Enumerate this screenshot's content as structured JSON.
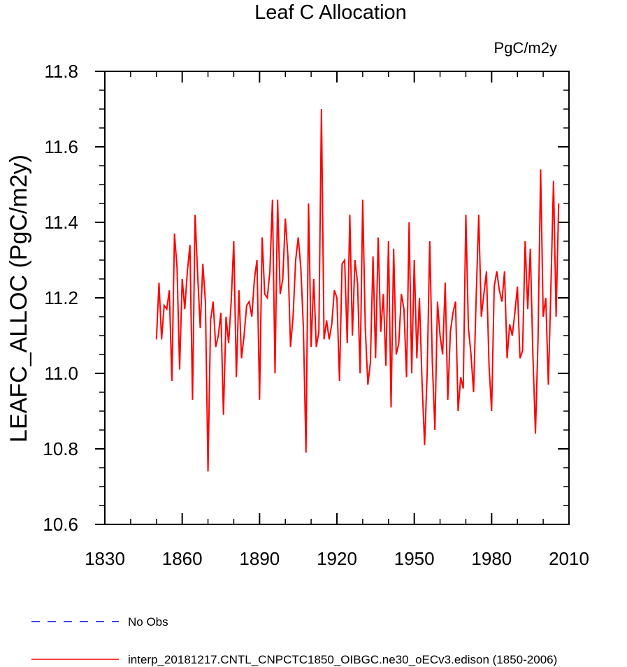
{
  "chart_data": {
    "type": "line",
    "title": "Leaf C Allocation",
    "units_label": "PgC/m2y",
    "xlabel": "",
    "ylabel": "LEAFC_ALLOC  (PgC/m2y)",
    "xlim": [
      1830,
      2010
    ],
    "ylim": [
      10.6,
      11.8
    ],
    "x_ticks": [
      "1830",
      "1860",
      "1890",
      "1920",
      "1950",
      "1980",
      "2010"
    ],
    "y_ticks": [
      "10.6",
      "10.8",
      "11.0",
      "11.2",
      "11.4",
      "11.6",
      "11.8"
    ],
    "x_minor_step": 10,
    "y_minor_step": 0.05,
    "legend": [
      {
        "label": "No Obs",
        "color": "#0000ff",
        "style": "dashed"
      },
      {
        "label": "interp_20181217.CNTL_CNPCTC1850_OIBGC.ne30_oECv3.edison (1850-2006)",
        "color": "#ff0000",
        "style": "solid"
      }
    ],
    "series": [
      {
        "name": "interp_20181217.CNTL_CNPCTC1850_OIBGC.ne30_oECv3.edison (1850-2006)",
        "color": "#ff0000",
        "x_start": 1850,
        "x_step": 1,
        "values": [
          11.09,
          11.24,
          11.09,
          11.18,
          11.17,
          11.22,
          10.98,
          11.37,
          11.28,
          11.01,
          11.25,
          11.17,
          11.27,
          11.34,
          10.93,
          11.42,
          11.26,
          11.12,
          11.29,
          11.19,
          10.74,
          11.14,
          11.19,
          11.07,
          11.1,
          11.16,
          10.89,
          11.15,
          11.08,
          11.19,
          11.35,
          10.99,
          11.22,
          11.04,
          11.1,
          11.18,
          11.19,
          11.15,
          11.25,
          11.3,
          10.93,
          11.36,
          11.21,
          11.2,
          11.27,
          11.46,
          11.0,
          11.46,
          11.21,
          11.25,
          11.41,
          11.31,
          11.07,
          11.15,
          11.3,
          11.36,
          11.28,
          11.12,
          10.79,
          11.45,
          11.07,
          11.25,
          11.07,
          11.11,
          11.7,
          11.09,
          11.14,
          11.09,
          11.13,
          11.22,
          11.2,
          10.98,
          11.29,
          11.3,
          11.08,
          11.42,
          11.1,
          11.3,
          11.24,
          11.0,
          11.46,
          11.12,
          10.97,
          11.03,
          11.31,
          11.04,
          11.36,
          11.11,
          11.21,
          11.02,
          11.35,
          10.91,
          11.33,
          11.05,
          11.08,
          11.21,
          11.17,
          10.99,
          11.4,
          11.0,
          11.3,
          11.04,
          11.2,
          10.98,
          10.81,
          11.0,
          11.35,
          11.03,
          10.85,
          11.19,
          11.1,
          11.05,
          11.24,
          10.93,
          11.11,
          11.16,
          11.19,
          10.9,
          10.99,
          10.96,
          11.42,
          11.12,
          11.05,
          10.95,
          11.2,
          11.42,
          11.15,
          11.21,
          11.27,
          11.02,
          10.9,
          11.23,
          11.27,
          11.22,
          11.19,
          11.27,
          11.04,
          11.13,
          11.1,
          11.16,
          11.23,
          11.04,
          11.06,
          11.35,
          11.17,
          11.33,
          11.05,
          10.84,
          11.09,
          11.54,
          11.15,
          11.2,
          10.97,
          11.23,
          11.51,
          11.15,
          11.45
        ]
      }
    ]
  }
}
